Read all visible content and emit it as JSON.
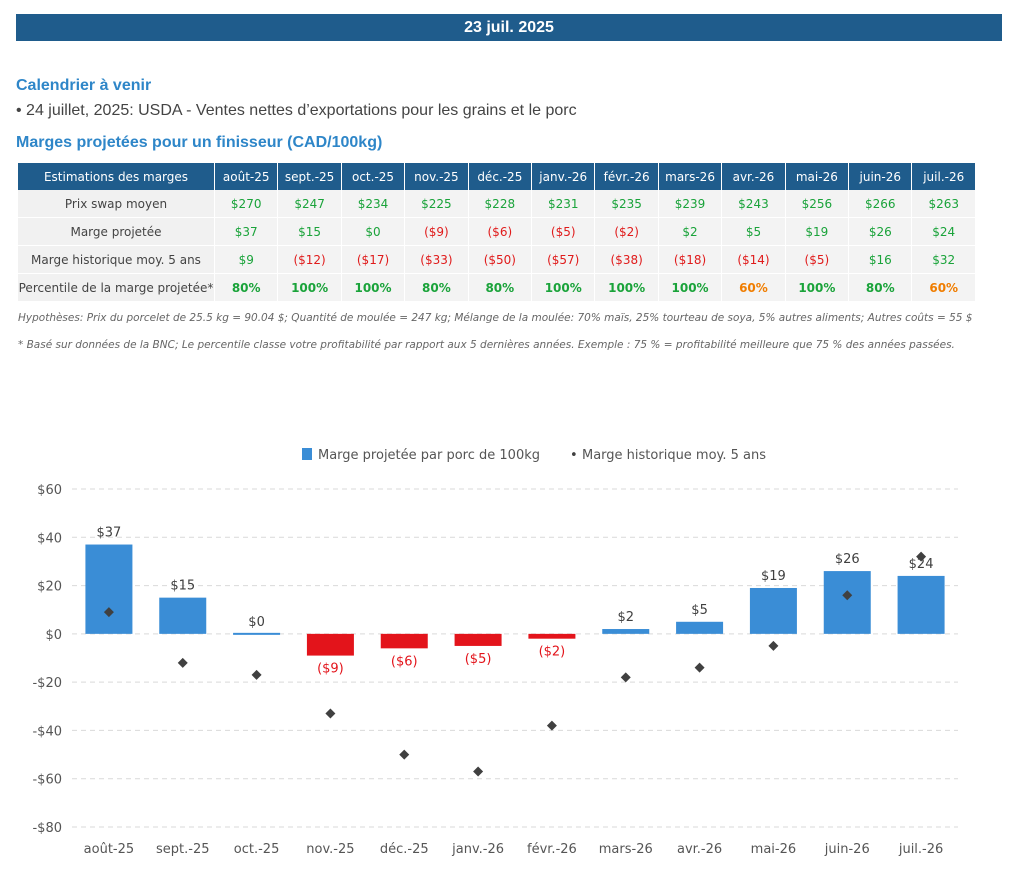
{
  "header": {
    "date": "23 juil. 2025"
  },
  "calendar": {
    "title": "Calendrier à venir",
    "item": "• 24 juillet, 2025: USDA - Ventes nettes d’exportations pour les grains et le porc"
  },
  "margins": {
    "title": "Marges projetées pour un finisseur (CAD/100kg)",
    "table": {
      "header_label": "Estimations des marges",
      "months": [
        "août-25",
        "sept.-25",
        "oct.-25",
        "nov.-25",
        "déc.-25",
        "janv.-26",
        "févr.-26",
        "mars-26",
        "avr.-26",
        "mai-26",
        "juin-26",
        "juil.-26"
      ],
      "rows": [
        {
          "label": "Prix swap moyen",
          "values": [
            "$270",
            "$247",
            "$234",
            "$225",
            "$228",
            "$231",
            "$235",
            "$239",
            "$243",
            "$256",
            "$266",
            "$263"
          ],
          "colors": [
            "pos",
            "pos",
            "pos",
            "pos",
            "pos",
            "pos",
            "pos",
            "pos",
            "pos",
            "pos",
            "pos",
            "pos"
          ]
        },
        {
          "label": "Marge projetée",
          "values": [
            "$37",
            "$15",
            "$0",
            "($9)",
            "($6)",
            "($5)",
            "($2)",
            "$2",
            "$5",
            "$19",
            "$26",
            "$24"
          ],
          "colors": [
            "pos",
            "pos",
            "pos",
            "neg",
            "neg",
            "neg",
            "neg",
            "pos",
            "pos",
            "pos",
            "pos",
            "pos"
          ]
        },
        {
          "label": "Marge historique moy. 5 ans",
          "values": [
            "$9",
            "($12)",
            "($17)",
            "($33)",
            "($50)",
            "($57)",
            "($38)",
            "($18)",
            "($14)",
            "($5)",
            "$16",
            "$32"
          ],
          "colors": [
            "pos",
            "neg",
            "neg",
            "neg",
            "neg",
            "neg",
            "neg",
            "neg",
            "neg",
            "neg",
            "pos",
            "pos"
          ]
        },
        {
          "label": "Percentile de la marge projetée*",
          "values": [
            "80%",
            "100%",
            "100%",
            "80%",
            "80%",
            "100%",
            "100%",
            "100%",
            "60%",
            "100%",
            "80%",
            "60%"
          ],
          "colors": [
            "pos",
            "pos",
            "pos",
            "pos",
            "pos",
            "pos",
            "pos",
            "pos",
            "orange",
            "pos",
            "pos",
            "orange"
          ]
        }
      ]
    },
    "footnote1": "Hypothèses: Prix du porcelet de 25.5 kg = 90.04 $; Quantité de moulée = 247 kg; Mélange de la moulée: 70% maïs, 25% tourteau de soya, 5% autres aliments; Autres coûts = 55 $",
    "footnote2": "* Basé sur données de la BNC; Le percentile classe votre profitabilité par rapport aux 5 dernières années. Exemple : 75 % = profitabilité meilleure que 75 % des années passées."
  },
  "chart_data": {
    "type": "bar",
    "categories": [
      "août-25",
      "sept.-25",
      "oct.-25",
      "nov.-25",
      "déc.-25",
      "janv.-26",
      "févr.-26",
      "mars-26",
      "avr.-26",
      "mai-26",
      "juin-26",
      "juil.-26"
    ],
    "series": [
      {
        "name": "Marge projetée par porc de 100kg",
        "type": "bar",
        "values": [
          37,
          15,
          0,
          -9,
          -6,
          -5,
          -2,
          2,
          5,
          19,
          26,
          24
        ],
        "labels": [
          "$37",
          "$15",
          "$0",
          "($9)",
          "($6)",
          "($5)",
          "($2)",
          "$2",
          "$5",
          "$19",
          "$26",
          "$24"
        ]
      },
      {
        "name": "Marge historique moy. 5 ans",
        "type": "scatter",
        "values": [
          9,
          -12,
          -17,
          -33,
          -50,
          -57,
          -38,
          -18,
          -14,
          -5,
          16,
          32
        ]
      }
    ],
    "ylim": [
      -80,
      60
    ],
    "yticks": [
      -80,
      -60,
      -40,
      -20,
      0,
      20,
      40,
      60
    ],
    "ytick_labels": [
      "-$80",
      "-$60",
      "-$40",
      "-$20",
      "$0",
      "$20",
      "$40",
      "$60"
    ],
    "grid": true,
    "legend_position": "top-center",
    "colors": {
      "positive": "#3a8dd6",
      "negative": "#e3141b",
      "marker": "#404040",
      "label_positive": "#404040",
      "label_negative": "#e3141b"
    }
  }
}
